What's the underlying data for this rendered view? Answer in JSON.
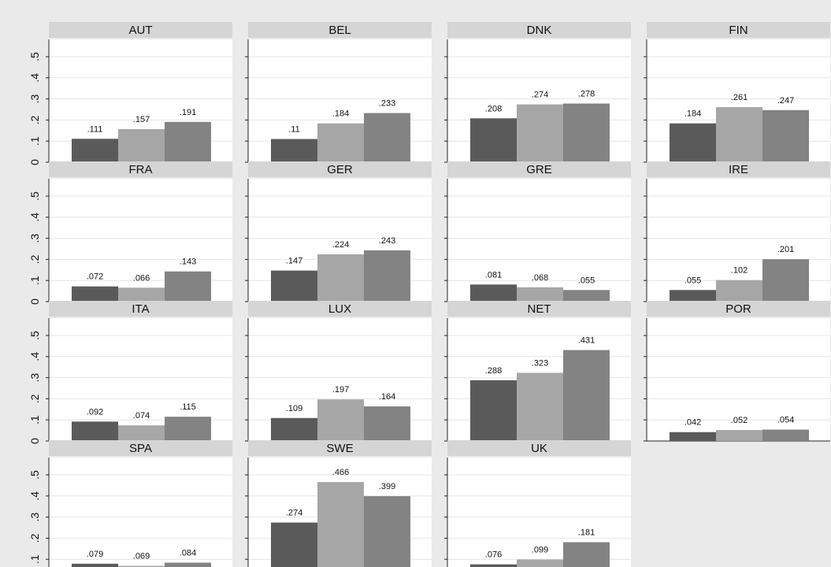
{
  "chart_data": {
    "type": "bar",
    "ylim": [
      0,
      0.5
    ],
    "yticks": [
      0,
      0.1,
      0.2,
      0.3,
      0.4,
      0.5
    ],
    "ytick_labels": [
      "0",
      ".1",
      ".2",
      ".3",
      ".4",
      ".5"
    ],
    "grid": true,
    "colors": {
      "bar_1": "#5a5a5a",
      "bar_2": "#a6a6a6",
      "bar_3": "#838383",
      "panel_header": "#d5d5d5",
      "plot_background": "#ffffff",
      "page_background": "#eaeaea",
      "gridline": "#e4e4e4"
    },
    "panels": [
      {
        "title": "AUT",
        "values": [
          0.111,
          0.157,
          0.191
        ],
        "labels": [
          ".111",
          ".157",
          ".191"
        ]
      },
      {
        "title": "BEL",
        "values": [
          0.11,
          0.184,
          0.233
        ],
        "labels": [
          ".11",
          ".184",
          ".233"
        ]
      },
      {
        "title": "DNK",
        "values": [
          0.208,
          0.274,
          0.278
        ],
        "labels": [
          ".208",
          ".274",
          ".278"
        ]
      },
      {
        "title": "FIN",
        "values": [
          0.184,
          0.261,
          0.247
        ],
        "labels": [
          ".184",
          ".261",
          ".247"
        ]
      },
      {
        "title": "FRA",
        "values": [
          0.072,
          0.066,
          0.143
        ],
        "labels": [
          ".072",
          ".066",
          ".143"
        ]
      },
      {
        "title": "GER",
        "values": [
          0.147,
          0.224,
          0.243
        ],
        "labels": [
          ".147",
          ".224",
          ".243"
        ]
      },
      {
        "title": "GRE",
        "values": [
          0.081,
          0.068,
          0.055
        ],
        "labels": [
          ".081",
          ".068",
          ".055"
        ]
      },
      {
        "title": "IRE",
        "values": [
          0.055,
          0.102,
          0.201
        ],
        "labels": [
          ".055",
          ".102",
          ".201"
        ]
      },
      {
        "title": "ITA",
        "values": [
          0.092,
          0.074,
          0.115
        ],
        "labels": [
          ".092",
          ".074",
          ".115"
        ]
      },
      {
        "title": "LUX",
        "values": [
          0.109,
          0.197,
          0.164
        ],
        "labels": [
          ".109",
          ".197",
          ".164"
        ]
      },
      {
        "title": "NET",
        "values": [
          0.288,
          0.323,
          0.431
        ],
        "labels": [
          ".288",
          ".323",
          ".431"
        ]
      },
      {
        "title": "POR",
        "values": [
          0.042,
          0.052,
          0.054
        ],
        "labels": [
          ".042",
          ".052",
          ".054"
        ]
      },
      {
        "title": "SPA",
        "values": [
          0.079,
          0.069,
          0.084
        ],
        "labels": [
          ".079",
          ".069",
          ".084"
        ]
      },
      {
        "title": "SWE",
        "values": [
          0.274,
          0.466,
          0.399
        ],
        "labels": [
          ".274",
          ".466",
          ".399"
        ]
      },
      {
        "title": "UK",
        "values": [
          0.076,
          0.099,
          0.181
        ],
        "labels": [
          ".076",
          ".099",
          ".181"
        ]
      }
    ]
  }
}
